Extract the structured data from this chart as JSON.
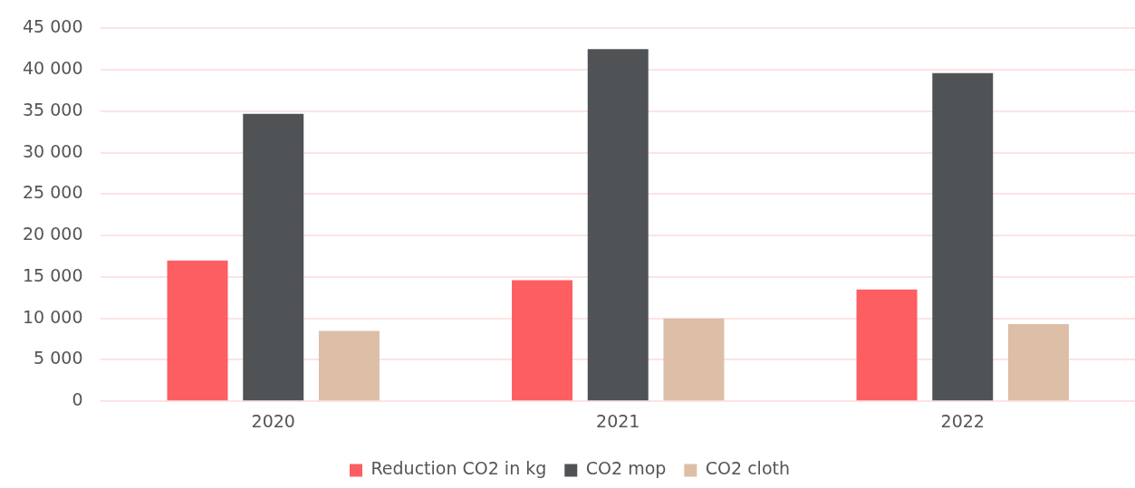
{
  "chart_data": {
    "type": "bar",
    "categories": [
      "2020",
      "2021",
      "2022"
    ],
    "series": [
      {
        "name": "Reduction CO2 in kg",
        "color": "#fc5e61",
        "values": [
          17000,
          14600,
          13500
        ]
      },
      {
        "name": "CO2 mop",
        "color": "#505355",
        "values": [
          34700,
          42500,
          39600
        ]
      },
      {
        "name": "CO2 cloth",
        "color": "#ddbea6",
        "values": [
          8500,
          10000,
          9300
        ]
      }
    ],
    "ylim": [
      0,
      45000
    ],
    "yticks": [
      0,
      5000,
      10000,
      15000,
      20000,
      25000,
      30000,
      35000,
      40000,
      45000
    ],
    "grid": "y",
    "legend": "bottom"
  }
}
